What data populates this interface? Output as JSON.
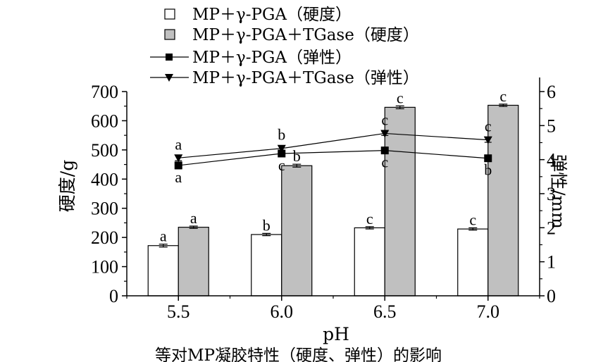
{
  "chart_data": {
    "type": "bar",
    "categories": [
      "5.5",
      "6.0",
      "6.5",
      "7.0"
    ],
    "xlabel": "pH",
    "ylabel_left": "硬度/g",
    "ylabel_right": "弹性/mm",
    "ylim_left": [
      0,
      700
    ],
    "ylim_right": [
      0,
      6
    ],
    "yticks_left": [
      "0",
      "100",
      "200",
      "300",
      "400",
      "500",
      "600",
      "700"
    ],
    "yticks_right": [
      "0",
      "1",
      "2",
      "3",
      "4",
      "5",
      "6"
    ],
    "grid": false,
    "legend_position": "top",
    "bar_series": [
      {
        "name": "MP＋γ-PGA（硬度）",
        "color": "#ffffff",
        "values": [
          172,
          210,
          233,
          229
        ],
        "errors": [
          5,
          4,
          4,
          4
        ],
        "labels": [
          "a",
          "b",
          "c",
          "c"
        ]
      },
      {
        "name": "MP＋γ-PGA＋TGase（硬度）",
        "color": "#c0c0c0",
        "values": [
          235,
          446,
          646,
          653
        ],
        "errors": [
          4,
          5,
          5,
          4
        ],
        "labels": [
          "a",
          "b",
          "c",
          "c"
        ]
      }
    ],
    "line_series": [
      {
        "name": "MP＋γ-PGA（弹性）",
        "marker": "square",
        "values": [
          3.83,
          4.18,
          4.27,
          4.04
        ],
        "errors": [
          0.1,
          0.07,
          0.05,
          0.05
        ],
        "labels": [
          "a",
          "c",
          "c",
          "b"
        ]
      },
      {
        "name": "MP＋γ-PGA＋TGase（弹性）",
        "marker": "triangle-down",
        "values": [
          4.05,
          4.33,
          4.77,
          4.58
        ],
        "errors": [
          0.08,
          0.07,
          0.06,
          0.07
        ],
        "labels": [
          "a",
          "b",
          "c",
          "c"
        ]
      }
    ]
  },
  "footer_text": "等对MP凝胶特性（硬度、弹性）的影响"
}
